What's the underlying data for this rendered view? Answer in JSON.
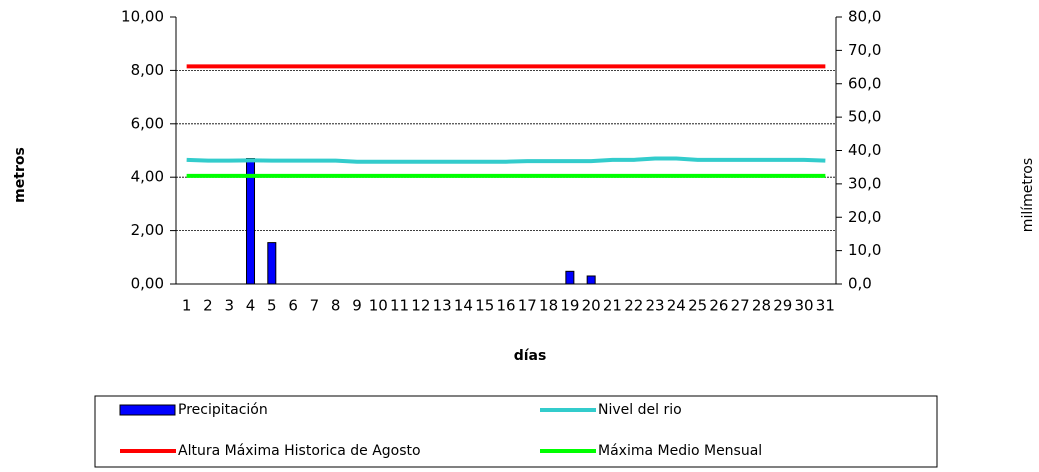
{
  "chart_data": {
    "type": "bar",
    "x_label": "días",
    "y_label": "metros",
    "y2_label": "milímetros",
    "categories": [
      "1",
      "2",
      "3",
      "4",
      "5",
      "6",
      "7",
      "8",
      "9",
      "10",
      "11",
      "12",
      "13",
      "14",
      "15",
      "16",
      "17",
      "18",
      "19",
      "20",
      "21",
      "22",
      "23",
      "24",
      "25",
      "26",
      "27",
      "28",
      "29",
      "30",
      "31"
    ],
    "series": [
      {
        "name": "Precipitación",
        "type": "bar",
        "axis": "y2",
        "color": "#0000ff",
        "values": [
          0,
          0,
          0,
          37.6,
          12.4,
          0,
          0,
          0,
          0,
          0,
          0,
          0,
          0,
          0,
          0,
          0,
          0,
          0,
          3.8,
          2.4,
          0,
          0,
          0,
          0,
          0,
          0,
          0,
          0,
          0,
          0,
          0
        ]
      },
      {
        "name": "Nivel del rio",
        "type": "line",
        "color": "#33cccc",
        "values": [
          4.65,
          4.62,
          4.62,
          4.63,
          4.62,
          4.62,
          4.62,
          4.62,
          4.58,
          4.58,
          4.58,
          4.58,
          4.58,
          4.58,
          4.58,
          4.58,
          4.6,
          4.6,
          4.6,
          4.6,
          4.65,
          4.65,
          4.7,
          4.7,
          4.65,
          4.65,
          4.65,
          4.65,
          4.65,
          4.65,
          4.62
        ]
      },
      {
        "name": "Altura Máxima Historica de Agosto",
        "type": "line",
        "color": "#ff0000",
        "values": [
          8.15,
          8.15,
          8.15,
          8.15,
          8.15,
          8.15,
          8.15,
          8.15,
          8.15,
          8.15,
          8.15,
          8.15,
          8.15,
          8.15,
          8.15,
          8.15,
          8.15,
          8.15,
          8.15,
          8.15,
          8.15,
          8.15,
          8.15,
          8.15,
          8.15,
          8.15,
          8.15,
          8.15,
          8.15,
          8.15,
          8.15
        ]
      },
      {
        "name": "Máxima Medio Mensual",
        "type": "line",
        "color": "#00ff00",
        "values": [
          4.05,
          4.05,
          4.05,
          4.05,
          4.05,
          4.05,
          4.05,
          4.05,
          4.05,
          4.05,
          4.05,
          4.05,
          4.05,
          4.05,
          4.05,
          4.05,
          4.05,
          4.05,
          4.05,
          4.05,
          4.05,
          4.05,
          4.05,
          4.05,
          4.05,
          4.05,
          4.05,
          4.05,
          4.05,
          4.05,
          4.05
        ]
      }
    ],
    "ylim": [
      0,
      10
    ],
    "yticks": [
      {
        "value": 0,
        "label": "0,00"
      },
      {
        "value": 2,
        "label": "2,00"
      },
      {
        "value": 4,
        "label": "4,00"
      },
      {
        "value": 6,
        "label": "6,00"
      },
      {
        "value": 8,
        "label": "8,00"
      },
      {
        "value": 10,
        "label": "10,00"
      }
    ],
    "y2lim": [
      0,
      80
    ],
    "y2ticks": [
      {
        "value": 0,
        "label": "0,0"
      },
      {
        "value": 10,
        "label": "10,0"
      },
      {
        "value": 20,
        "label": "20,0"
      },
      {
        "value": 30,
        "label": "30,0"
      },
      {
        "value": 40,
        "label": "40,0"
      },
      {
        "value": 50,
        "label": "50,0"
      },
      {
        "value": 60,
        "label": "60,0"
      },
      {
        "value": 70,
        "label": "70,0"
      },
      {
        "value": 80,
        "label": "80,0"
      }
    ],
    "grid": true
  }
}
